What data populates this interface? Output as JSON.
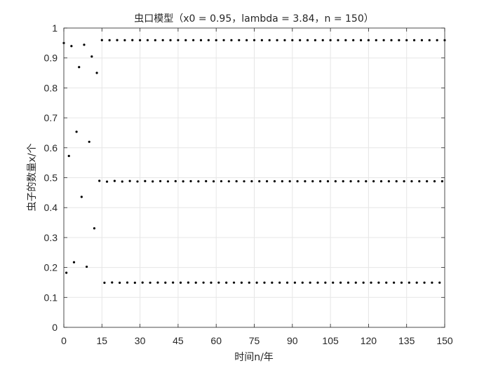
{
  "chart_data": {
    "type": "scatter",
    "title": "虫口模型（x0 = 0.95，lambda = 3.84，n = 150）",
    "xlabel": "时间n/年",
    "ylabel": "虫子的数量x/个",
    "xlim": [
      0,
      150
    ],
    "ylim": [
      0,
      1
    ],
    "xticks": [
      "0",
      "15",
      "30",
      "45",
      "60",
      "75",
      "90",
      "105",
      "120",
      "135",
      "150"
    ],
    "yticks": [
      "0",
      "0.1",
      "0.2",
      "0.3",
      "0.4",
      "0.5",
      "0.6",
      "0.7",
      "0.8",
      "0.9",
      "1"
    ],
    "grid": true,
    "marker_color": "#000000",
    "params": {
      "x0": 0.95,
      "lambda": 3.84,
      "n": 150
    }
  }
}
